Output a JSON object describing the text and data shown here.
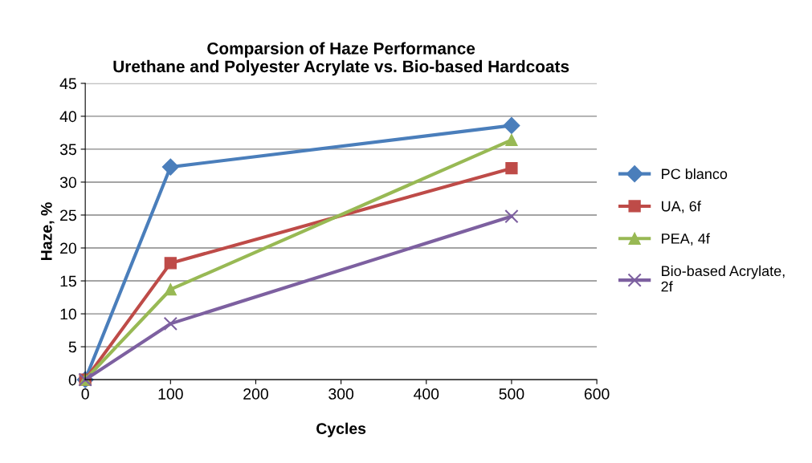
{
  "chart_data": {
    "type": "line",
    "title": "Comparsion of Haze Performance\nUrethane and Polyester Acrylate vs. Bio-based Hardcoats",
    "xlabel": "Cycles",
    "ylabel": "Haze, %",
    "x": [
      0,
      100,
      500
    ],
    "series": [
      {
        "name": "PC blanco",
        "color": "#4a7ebb",
        "marker": "diamond",
        "values": [
          0,
          32.3,
          38.6
        ]
      },
      {
        "name": "UA, 6f",
        "color": "#be4b48",
        "marker": "square",
        "values": [
          0,
          17.7,
          32.1
        ]
      },
      {
        "name": "PEA, 4f",
        "color": "#98b954",
        "marker": "triangle",
        "values": [
          0,
          13.7,
          36.4
        ]
      },
      {
        "name": "Bio-based Acrylate,\n2f",
        "color": "#7d60a0",
        "marker": "cross",
        "values": [
          0,
          8.5,
          24.8
        ]
      }
    ],
    "xlim": [
      0,
      600
    ],
    "xticks": [
      0,
      100,
      200,
      300,
      400,
      500,
      600
    ],
    "ylim": [
      0,
      45
    ],
    "yticks": [
      0,
      5,
      10,
      15,
      20,
      25,
      30,
      35,
      40,
      45
    ],
    "grid": "y",
    "legend": "right",
    "line_style": "solid"
  }
}
